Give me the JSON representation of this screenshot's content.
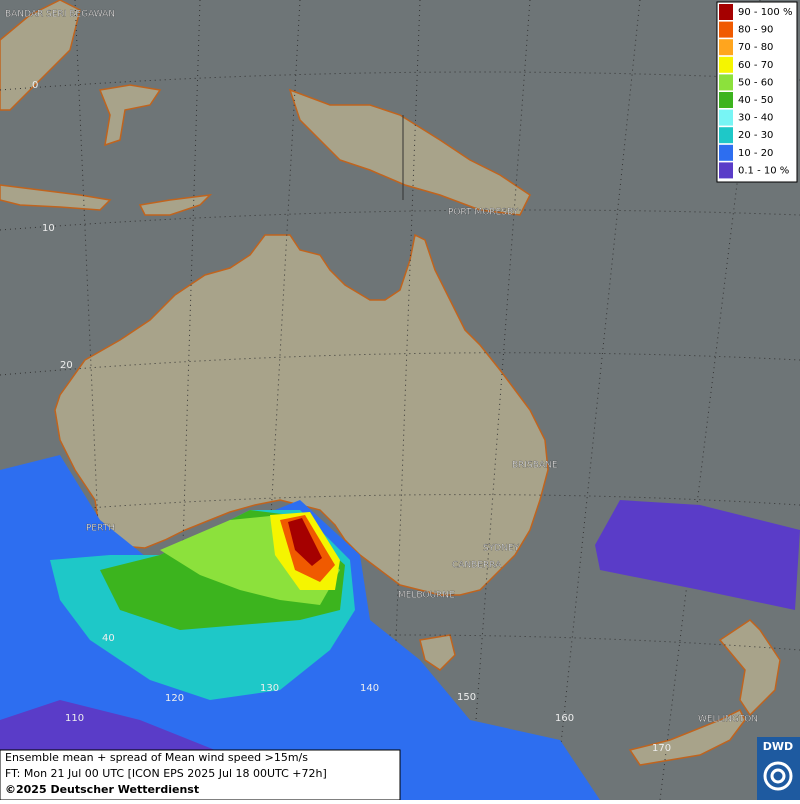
{
  "legend": {
    "items": [
      {
        "label": "90 - 100 %",
        "color": "#a50000"
      },
      {
        "label": "80 - 90",
        "color": "#f05a00"
      },
      {
        "label": "70 - 80",
        "color": "#ffa51e"
      },
      {
        "label": "60 - 70",
        "color": "#f5f500"
      },
      {
        "label": "50 - 60",
        "color": "#8ce13c"
      },
      {
        "label": "40 - 50",
        "color": "#3cb41e"
      },
      {
        "label": "30 - 40",
        "color": "#78f5f5"
      },
      {
        "label": "20 - 30",
        "color": "#1ec8c8"
      },
      {
        "label": "10 - 20",
        "color": "#2d6ef0"
      },
      {
        "label": "0.1 - 10 %",
        "color": "#5a3cc8"
      }
    ]
  },
  "places": [
    "BANDAR SERI BEGAWAN",
    "PORT MORESBY",
    "BRISBANE",
    "PERTH",
    "SYDNEY",
    "CANBERRA",
    "MELBOURNE",
    "WELLINGTON"
  ],
  "latitude_labels": [
    "0",
    "10",
    "20",
    "40"
  ],
  "longitude_labels": [
    "110",
    "120",
    "130",
    "140",
    "150",
    "160",
    "170"
  ],
  "caption": {
    "line1": "Ensemble mean + spread of Mean wind speed >15m/s",
    "line2": "FT: Mon 21 Jul 00 UTC [ICON EPS 2025 Jul 18 00UTC +72h]",
    "copyright": "©2025 Deutscher Wetterdienst"
  },
  "logo": "DWD"
}
